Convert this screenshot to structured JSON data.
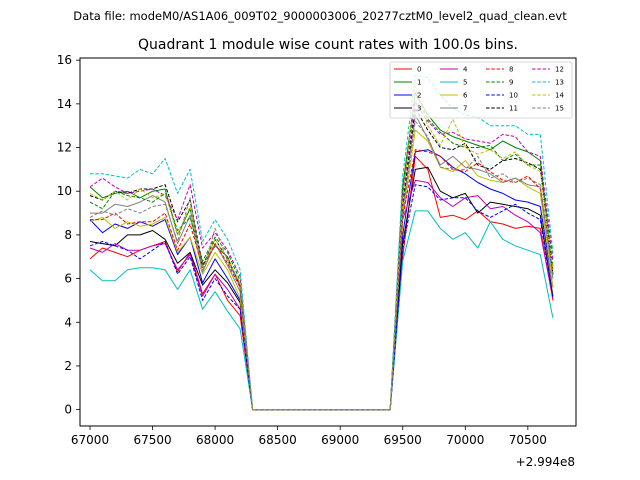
{
  "header": {
    "data_file": "Data file: modeM0/AS1A06_009T02_9000003006_20277cztM0_level2_quad_clean.evt"
  },
  "chart_data": {
    "type": "line",
    "title": "Quadrant 1 module wise count rates with 100.0s bins.",
    "xlabel": "",
    "ylabel": "",
    "x_offset_label": "+2.994e8",
    "xlim": [
      66920,
      70885
    ],
    "ylim": [
      -0.75,
      16.1
    ],
    "x_ticks": [
      67000,
      67500,
      68000,
      68500,
      69000,
      69500,
      70000,
      70500
    ],
    "x_tick_labels": [
      "67000",
      "67500",
      "68000",
      "68500",
      "69000",
      "69500",
      "70000",
      "70500"
    ],
    "y_ticks": [
      0,
      2,
      4,
      6,
      8,
      10,
      12,
      14,
      16
    ],
    "y_tick_labels": [
      "0",
      "2",
      "4",
      "6",
      "8",
      "10",
      "12",
      "14",
      "16"
    ],
    "grid": false,
    "legend_position": "top-right",
    "legend_columns": 4,
    "x": [
      67000,
      67100,
      67200,
      67300,
      67400,
      67500,
      67600,
      67700,
      67800,
      67900,
      68000,
      68100,
      68200,
      68300,
      68400,
      68500,
      68600,
      68700,
      68800,
      68900,
      69000,
      69100,
      69200,
      69300,
      69400,
      69500,
      69600,
      69700,
      69800,
      69900,
      70000,
      70100,
      70200,
      70300,
      70400,
      70500,
      70600,
      70700
    ],
    "series": [
      {
        "name": "0",
        "color": "#ff0000",
        "dash": false,
        "values": [
          6.9,
          7.4,
          7.2,
          7.0,
          7.3,
          7.5,
          7.7,
          6.3,
          7.2,
          5.3,
          6.2,
          5.0,
          4.3,
          0,
          0,
          0,
          0,
          0,
          0,
          0,
          0,
          0,
          0,
          0,
          0,
          7.0,
          11.6,
          11.0,
          8.8,
          8.9,
          8.7,
          9.1,
          8.6,
          8.5,
          8.3,
          8.4,
          8.3,
          5.0
        ]
      },
      {
        "name": "1",
        "color": "#008000",
        "dash": false,
        "values": [
          10.2,
          9.7,
          9.9,
          10.0,
          9.7,
          10.0,
          10.1,
          8.0,
          9.2,
          6.6,
          7.5,
          7.0,
          5.6,
          0,
          0,
          0,
          0,
          0,
          0,
          0,
          0,
          0,
          0,
          0,
          0,
          10.2,
          14.5,
          13.5,
          12.8,
          12.5,
          12.3,
          12.1,
          11.9,
          12.3,
          12.0,
          11.8,
          11.4,
          6.2
        ]
      },
      {
        "name": "2",
        "color": "#0000ff",
        "dash": false,
        "values": [
          8.7,
          8.1,
          8.5,
          8.3,
          8.6,
          8.4,
          8.7,
          7.1,
          7.9,
          5.8,
          6.9,
          6.0,
          5.0,
          0,
          0,
          0,
          0,
          0,
          0,
          0,
          0,
          0,
          0,
          0,
          0,
          8.0,
          11.8,
          11.9,
          11.6,
          11.1,
          10.8,
          10.4,
          10.1,
          9.9,
          9.6,
          9.5,
          9.3,
          5.6
        ]
      },
      {
        "name": "3",
        "color": "#000000",
        "dash": false,
        "values": [
          7.7,
          7.6,
          7.5,
          8.0,
          8.0,
          8.2,
          7.8,
          6.7,
          7.2,
          5.7,
          6.4,
          5.8,
          4.9,
          0,
          0,
          0,
          0,
          0,
          0,
          0,
          0,
          0,
          0,
          0,
          0,
          7.6,
          11.0,
          11.1,
          10.0,
          9.7,
          9.9,
          9.0,
          9.5,
          9.4,
          9.3,
          9.2,
          8.9,
          5.2
        ]
      },
      {
        "name": "4",
        "color": "#bf00bf",
        "dash": false,
        "values": [
          7.4,
          7.2,
          7.6,
          7.3,
          7.3,
          7.5,
          7.6,
          6.4,
          7.1,
          5.2,
          6.2,
          5.5,
          4.6,
          0,
          0,
          0,
          0,
          0,
          0,
          0,
          0,
          0,
          0,
          0,
          0,
          8.7,
          10.5,
          10.4,
          9.7,
          9.3,
          9.7,
          9.8,
          9.2,
          9.3,
          8.9,
          8.6,
          8.1,
          5.1
        ]
      },
      {
        "name": "5",
        "color": "#00bfbf",
        "dash": false,
        "values": [
          6.4,
          5.9,
          5.9,
          6.4,
          6.5,
          6.5,
          6.4,
          5.5,
          6.4,
          4.6,
          5.4,
          4.5,
          3.7,
          0,
          0,
          0,
          0,
          0,
          0,
          0,
          0,
          0,
          0,
          0,
          0,
          6.8,
          9.1,
          9.1,
          8.3,
          7.8,
          8.1,
          7.4,
          8.6,
          7.8,
          7.5,
          7.3,
          7.1,
          4.2
        ]
      },
      {
        "name": "6",
        "color": "#bfbf00",
        "dash": false,
        "values": [
          8.6,
          8.8,
          8.3,
          8.6,
          8.4,
          8.5,
          8.8,
          7.2,
          7.9,
          6.2,
          7.2,
          6.4,
          5.1,
          0,
          0,
          0,
          0,
          0,
          0,
          0,
          0,
          0,
          0,
          0,
          0,
          8.7,
          12.8,
          12.3,
          11.1,
          10.9,
          11.4,
          10.7,
          10.5,
          10.4,
          10.6,
          10.2,
          9.9,
          5.6
        ]
      },
      {
        "name": "7",
        "color": "#808080",
        "dash": false,
        "values": [
          9.0,
          9.0,
          9.4,
          9.3,
          9.5,
          9.8,
          9.5,
          7.6,
          8.9,
          6.3,
          7.6,
          6.6,
          5.4,
          0,
          0,
          0,
          0,
          0,
          0,
          0,
          0,
          0,
          0,
          0,
          0,
          9.1,
          13.5,
          12.4,
          11.2,
          11.6,
          11.1,
          11.0,
          10.8,
          10.4,
          10.6,
          10.3,
          10.2,
          6.0
        ]
      },
      {
        "name": "8",
        "color": "#ff0000",
        "dash": true,
        "values": [
          8.7,
          8.7,
          9.0,
          8.5,
          8.6,
          8.6,
          9.0,
          7.3,
          8.5,
          6.5,
          7.6,
          6.7,
          5.6,
          0,
          0,
          0,
          0,
          0,
          0,
          0,
          0,
          0,
          0,
          0,
          0,
          8.8,
          11.9,
          11.8,
          11.6,
          11.0,
          10.9,
          11.3,
          10.9,
          10.5,
          10.4,
          10.7,
          10.1,
          6.4
        ]
      },
      {
        "name": "9",
        "color": "#008000",
        "dash": true,
        "values": [
          9.5,
          9.2,
          10.0,
          9.8,
          9.7,
          9.5,
          9.9,
          8.2,
          8.8,
          6.8,
          7.9,
          7.2,
          5.9,
          0,
          0,
          0,
          0,
          0,
          0,
          0,
          0,
          0,
          0,
          0,
          0,
          10.2,
          14.5,
          13.3,
          12.7,
          12.2,
          12.0,
          12.0,
          12.1,
          11.4,
          11.7,
          11.2,
          11.2,
          6.6
        ]
      },
      {
        "name": "10",
        "color": "#0000ff",
        "dash": true,
        "values": [
          7.5,
          7.7,
          7.5,
          7.3,
          6.9,
          7.3,
          7.7,
          6.2,
          7.0,
          5.0,
          6.0,
          5.2,
          4.6,
          0,
          0,
          0,
          0,
          0,
          0,
          0,
          0,
          0,
          0,
          0,
          0,
          7.4,
          10.3,
          10.2,
          9.6,
          9.7,
          9.7,
          9.1,
          8.8,
          9.1,
          9.4,
          9.0,
          8.7,
          5.1
        ]
      },
      {
        "name": "11",
        "color": "#000000",
        "dash": true,
        "values": [
          9.8,
          9.6,
          10.0,
          9.9,
          10.1,
          10.1,
          10.3,
          8.6,
          9.6,
          6.6,
          7.8,
          6.9,
          5.7,
          0,
          0,
          0,
          0,
          0,
          0,
          0,
          0,
          0,
          0,
          0,
          0,
          9.4,
          13.8,
          12.8,
          12.0,
          11.9,
          12.2,
          11.2,
          11.0,
          11.4,
          11.5,
          11.3,
          11.0,
          6.2
        ]
      },
      {
        "name": "12",
        "color": "#bf00bf",
        "dash": true,
        "values": [
          10.2,
          10.6,
          10.2,
          9.9,
          10.0,
          10.1,
          9.8,
          8.7,
          10.3,
          7.4,
          8.1,
          7.3,
          6.1,
          0,
          0,
          0,
          0,
          0,
          0,
          0,
          0,
          0,
          0,
          0,
          0,
          9.8,
          14.1,
          13.2,
          12.6,
          12.7,
          12.4,
          12.3,
          12.2,
          12.6,
          12.5,
          11.8,
          11.6,
          6.9
        ]
      },
      {
        "name": "13",
        "color": "#00bfbf",
        "dash": true,
        "values": [
          10.8,
          10.8,
          10.7,
          10.6,
          11.0,
          10.8,
          11.5,
          9.9,
          11.0,
          7.7,
          8.7,
          7.8,
          6.4,
          0,
          0,
          0,
          0,
          0,
          0,
          0,
          0,
          0,
          0,
          0,
          0,
          10.7,
          15.3,
          15.2,
          14.4,
          13.8,
          13.5,
          13.4,
          13.0,
          13.0,
          13.0,
          12.6,
          12.6,
          7.2
        ]
      },
      {
        "name": "14",
        "color": "#bfbf00",
        "dash": true,
        "values": [
          9.9,
          9.6,
          10.0,
          9.6,
          10.1,
          9.7,
          9.9,
          8.0,
          9.3,
          6.5,
          7.8,
          6.9,
          5.8,
          0,
          0,
          0,
          0,
          0,
          0,
          0,
          0,
          0,
          0,
          0,
          0,
          9.6,
          14.8,
          13.0,
          12.1,
          13.3,
          12.0,
          11.7,
          11.9,
          11.5,
          11.8,
          11.2,
          10.9,
          6.4
        ]
      },
      {
        "name": "15",
        "color": "#808080",
        "dash": true,
        "values": [
          8.8,
          9.1,
          8.9,
          9.2,
          9.0,
          9.3,
          9.4,
          7.7,
          9.7,
          6.3,
          8.3,
          6.8,
          5.7,
          0,
          0,
          0,
          0,
          0,
          0,
          0,
          0,
          0,
          0,
          0,
          0,
          8.9,
          13.2,
          12.5,
          11.1,
          11.0,
          11.0,
          11.6,
          10.6,
          10.8,
          10.4,
          10.6,
          10.3,
          6.1
        ]
      }
    ]
  }
}
